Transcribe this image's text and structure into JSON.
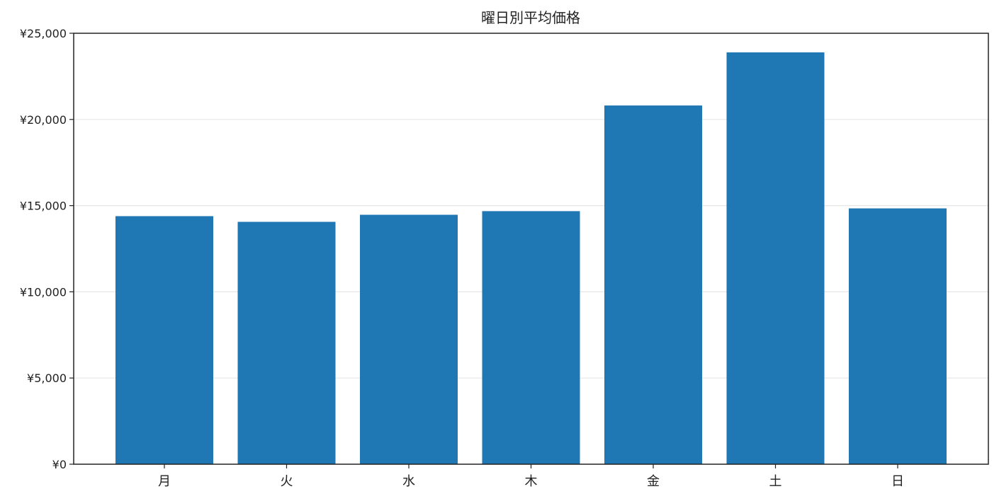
{
  "chart_data": {
    "type": "bar",
    "title": "曜日別平均価格",
    "xlabel": "",
    "ylabel": "",
    "categories": [
      "月",
      "火",
      "水",
      "木",
      "金",
      "土",
      "日"
    ],
    "values": [
      14390,
      14060,
      14470,
      14680,
      20810,
      23890,
      14840
    ],
    "ylim": [
      0,
      25000
    ],
    "yticks": [
      0,
      5000,
      10000,
      15000,
      20000,
      25000
    ],
    "ytick_labels": [
      "¥0",
      "¥5,000",
      "¥10,000",
      "¥15,000",
      "¥20,000",
      "¥25,000"
    ],
    "grid": "horizontal",
    "bar_color": "#1f77b4",
    "legend": "none"
  }
}
